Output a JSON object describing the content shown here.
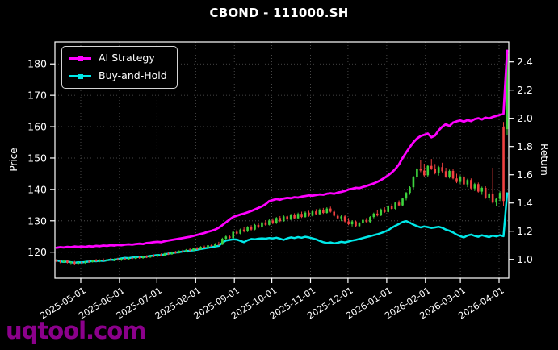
{
  "title": "CBOND - 111000.SH",
  "watermark": "uqtool.com",
  "legend": {
    "items": [
      {
        "label": "AI Strategy",
        "color": "#ff00ff"
      },
      {
        "label": "Buy-and-Hold",
        "color": "#00e8e8"
      }
    ]
  },
  "axes": {
    "left": {
      "label": "Price",
      "ticks": [
        120,
        130,
        140,
        150,
        160,
        170,
        180
      ],
      "range": [
        111.7,
        187.0
      ]
    },
    "right": {
      "label": "Return",
      "ticks": [
        1.0,
        1.2,
        1.4,
        1.6,
        1.8,
        2.0,
        2.2,
        2.4
      ],
      "range": [
        0.867,
        2.541
      ]
    },
    "x": {
      "tick_labels": [
        "2025-05-01",
        "2025-06-01",
        "2025-07-01",
        "2025-08-01",
        "2025-09-01",
        "2025-10-01",
        "2025-11-01",
        "2025-12-01",
        "2026-01-01",
        "2026-02-01",
        "2026-03-01",
        "2026-04-01"
      ],
      "tick_positions": [
        6.72,
        17.45,
        27.85,
        38.6,
        49.33,
        59.72,
        70.45,
        80.85,
        91.6,
        102.33,
        112.03,
        122.76
      ],
      "n_points": 126
    }
  },
  "colors": {
    "background": "#000000",
    "grid": "#5a5a5a",
    "axis": "#ffffff",
    "candle_up": "#3dd33d",
    "candle_down": "#f04040",
    "watermark": "#8b008b"
  },
  "chart_data": {
    "type": "line",
    "subtype": "dual-axis line + candlestick",
    "title": "CBOND - 111000.SH",
    "xlabel": "",
    "ylabel_left": "Price",
    "ylabel_right": "Return",
    "ylim_price": [
      111.7,
      187.0
    ],
    "ylim_return": [
      0.867,
      2.541
    ],
    "grid": "dotted both axes",
    "legend_position": "upper left",
    "series": [
      {
        "name": "AI Strategy",
        "type": "line",
        "axis": "price",
        "color": "#ff00ff",
        "width": 2.8,
        "values": [
          121.4,
          121.6,
          121.5,
          121.7,
          121.6,
          121.8,
          121.7,
          121.8,
          121.7,
          121.9,
          121.8,
          122.0,
          121.9,
          122.1,
          122.0,
          122.2,
          122.1,
          122.3,
          122.2,
          122.4,
          122.5,
          122.4,
          122.6,
          122.7,
          122.6,
          122.9,
          123.0,
          123.2,
          123.3,
          123.2,
          123.5,
          123.7,
          123.9,
          124.1,
          124.3,
          124.5,
          124.7,
          124.9,
          125.2,
          125.5,
          125.8,
          126.1,
          126.5,
          126.8,
          127.2,
          127.8,
          128.6,
          129.5,
          130.4,
          131.2,
          131.6,
          132.0,
          132.3,
          132.7,
          133.1,
          133.6,
          134.1,
          134.6,
          135.3,
          136.3,
          136.6,
          136.9,
          136.7,
          137.1,
          137.3,
          137.2,
          137.5,
          137.4,
          137.7,
          137.9,
          138.1,
          138.0,
          138.2,
          138.4,
          138.3,
          138.6,
          138.8,
          138.6,
          139.0,
          139.2,
          139.5,
          140.0,
          140.2,
          140.5,
          140.4,
          140.8,
          141.1,
          141.5,
          141.9,
          142.4,
          143.0,
          143.7,
          144.5,
          145.4,
          146.5,
          148.0,
          150.0,
          151.8,
          153.5,
          155.0,
          156.2,
          157.0,
          157.4,
          157.8,
          156.6,
          157.2,
          158.8,
          160.0,
          160.8,
          160.2,
          161.3,
          161.7,
          162.0,
          161.6,
          162.1,
          161.8,
          162.4,
          162.7,
          162.3,
          162.9,
          162.6,
          163.1,
          163.4,
          163.8,
          164.1,
          184.2
        ]
      },
      {
        "name": "Buy-and-Hold",
        "type": "line",
        "axis": "price",
        "color": "#00e8e8",
        "width": 2.5,
        "values": [
          117.4,
          117.1,
          116.9,
          117.0,
          116.8,
          116.6,
          116.8,
          116.7,
          116.9,
          117.0,
          117.2,
          117.1,
          117.3,
          117.2,
          117.4,
          117.6,
          117.5,
          117.8,
          118.0,
          118.2,
          118.1,
          118.3,
          118.4,
          118.5,
          118.4,
          118.6,
          118.8,
          118.9,
          119.1,
          119.0,
          119.3,
          119.5,
          119.7,
          119.9,
          120.0,
          120.2,
          120.3,
          120.5,
          120.6,
          120.8,
          121.0,
          121.2,
          121.4,
          121.6,
          121.8,
          122.0,
          123.0,
          123.7,
          123.9,
          124.1,
          124.0,
          123.6,
          123.2,
          123.8,
          124.2,
          124.1,
          124.3,
          124.4,
          124.3,
          124.5,
          124.4,
          124.6,
          124.3,
          123.9,
          124.4,
          124.7,
          124.5,
          124.8,
          124.6,
          124.9,
          124.7,
          124.4,
          124.1,
          123.6,
          123.2,
          122.9,
          123.1,
          122.8,
          123.0,
          123.3,
          123.1,
          123.4,
          123.7,
          123.9,
          124.2,
          124.5,
          124.8,
          125.1,
          125.4,
          125.7,
          126.1,
          126.5,
          127.0,
          127.8,
          128.4,
          129.0,
          129.6,
          129.9,
          129.4,
          128.8,
          128.3,
          127.9,
          128.2,
          128.0,
          127.7,
          127.9,
          128.1,
          127.8,
          127.2,
          126.8,
          126.3,
          125.6,
          125.1,
          124.7,
          125.3,
          125.6,
          125.2,
          124.9,
          125.4,
          125.1,
          124.8,
          125.3,
          125.0,
          125.4,
          125.1,
          138.8
        ]
      },
      {
        "name": "Daily OHLC",
        "type": "candlestick",
        "axis": "price",
        "up_color": "#3dd33d",
        "down_color": "#f04040",
        "values": [
          [
            117.3,
            117.8,
            116.8,
            117.0
          ],
          [
            117.0,
            117.4,
            116.5,
            116.8
          ],
          [
            116.8,
            117.5,
            116.6,
            117.3
          ],
          [
            117.3,
            117.6,
            116.4,
            116.6
          ],
          [
            116.6,
            117.1,
            116.2,
            116.9
          ],
          [
            116.9,
            117.2,
            116.0,
            116.3
          ],
          [
            116.3,
            117.0,
            116.1,
            116.8
          ],
          [
            116.8,
            117.1,
            116.2,
            116.5
          ],
          [
            116.5,
            117.2,
            116.3,
            117.0
          ],
          [
            117.0,
            117.4,
            116.6,
            116.8
          ],
          [
            116.8,
            117.6,
            116.7,
            117.4
          ],
          [
            117.4,
            117.8,
            116.9,
            117.1
          ],
          [
            117.1,
            117.7,
            116.8,
            117.5
          ],
          [
            117.5,
            118.0,
            117.0,
            117.2
          ],
          [
            117.2,
            117.9,
            117.0,
            117.7
          ],
          [
            117.7,
            118.1,
            117.2,
            117.4
          ],
          [
            117.4,
            118.0,
            117.1,
            117.8
          ],
          [
            117.8,
            118.2,
            117.3,
            117.5
          ],
          [
            117.5,
            118.1,
            117.2,
            117.9
          ],
          [
            117.9,
            118.3,
            117.4,
            117.7
          ],
          [
            117.7,
            118.4,
            117.5,
            118.2
          ],
          [
            118.2,
            118.6,
            117.7,
            117.9
          ],
          [
            117.9,
            118.6,
            117.7,
            118.4
          ],
          [
            118.4,
            118.8,
            117.9,
            118.1
          ],
          [
            118.1,
            118.8,
            117.9,
            118.6
          ],
          [
            118.6,
            119.0,
            118.1,
            118.3
          ],
          [
            118.3,
            119.1,
            118.2,
            118.9
          ],
          [
            118.9,
            119.3,
            118.4,
            118.6
          ],
          [
            118.6,
            119.4,
            118.5,
            119.2
          ],
          [
            119.2,
            119.6,
            118.7,
            118.9
          ],
          [
            118.9,
            119.8,
            118.8,
            119.6
          ],
          [
            119.6,
            120.0,
            119.1,
            119.3
          ],
          [
            119.3,
            120.2,
            119.2,
            120.0
          ],
          [
            120.0,
            120.4,
            119.5,
            119.7
          ],
          [
            119.7,
            120.6,
            119.6,
            120.4
          ],
          [
            120.4,
            120.8,
            119.9,
            120.1
          ],
          [
            120.1,
            121.0,
            120.0,
            120.8
          ],
          [
            120.8,
            121.2,
            120.3,
            120.5
          ],
          [
            120.5,
            121.4,
            120.4,
            121.2
          ],
          [
            121.2,
            121.6,
            120.7,
            120.9
          ],
          [
            120.9,
            121.9,
            120.8,
            121.7
          ],
          [
            121.7,
            122.1,
            121.2,
            121.4
          ],
          [
            121.4,
            122.4,
            121.3,
            122.2
          ],
          [
            122.2,
            122.6,
            121.7,
            121.9
          ],
          [
            121.9,
            122.9,
            121.8,
            122.7
          ],
          [
            122.7,
            123.3,
            122.1,
            122.4
          ],
          [
            122.4,
            124.6,
            122.3,
            124.3
          ],
          [
            124.3,
            125.3,
            123.9,
            125.0
          ],
          [
            125.0,
            125.5,
            124.2,
            124.5
          ],
          [
            124.5,
            126.8,
            124.4,
            126.5
          ],
          [
            126.5,
            127.2,
            125.6,
            125.9
          ],
          [
            125.9,
            127.5,
            125.7,
            127.2
          ],
          [
            127.2,
            127.9,
            126.3,
            126.6
          ],
          [
            126.6,
            128.3,
            126.4,
            128.0
          ],
          [
            128.0,
            128.6,
            126.9,
            127.2
          ],
          [
            127.2,
            129.0,
            127.0,
            128.7
          ],
          [
            128.7,
            129.4,
            127.6,
            127.9
          ],
          [
            127.9,
            129.8,
            127.7,
            129.5
          ],
          [
            129.5,
            130.2,
            128.4,
            128.7
          ],
          [
            128.7,
            130.5,
            128.5,
            130.1
          ],
          [
            130.1,
            130.8,
            128.9,
            129.2
          ],
          [
            129.2,
            131.2,
            129.0,
            130.9
          ],
          [
            130.9,
            131.5,
            129.6,
            129.9
          ],
          [
            129.9,
            131.8,
            129.7,
            131.4
          ],
          [
            131.4,
            132.0,
            130.1,
            130.4
          ],
          [
            130.4,
            132.2,
            130.2,
            131.8
          ],
          [
            131.8,
            132.4,
            130.5,
            130.8
          ],
          [
            130.8,
            132.6,
            130.6,
            132.2
          ],
          [
            132.2,
            132.9,
            130.9,
            131.2
          ],
          [
            131.2,
            133.0,
            131.0,
            132.6
          ],
          [
            132.6,
            133.2,
            131.3,
            131.6
          ],
          [
            131.6,
            133.4,
            131.4,
            133.0
          ],
          [
            133.0,
            133.7,
            131.8,
            132.1
          ],
          [
            132.1,
            133.9,
            131.9,
            133.5
          ],
          [
            133.5,
            134.1,
            132.2,
            132.5
          ],
          [
            132.5,
            134.3,
            132.3,
            133.9
          ],
          [
            133.9,
            134.5,
            132.6,
            132.9
          ],
          [
            132.9,
            133.3,
            131.3,
            131.6
          ],
          [
            131.6,
            132.2,
            130.5,
            130.8
          ],
          [
            130.8,
            131.8,
            129.9,
            131.4
          ],
          [
            131.4,
            131.8,
            129.5,
            129.8
          ],
          [
            129.8,
            130.9,
            128.6,
            128.9
          ],
          [
            128.9,
            130.2,
            128.2,
            129.8
          ],
          [
            129.8,
            130.1,
            127.9,
            128.3
          ],
          [
            128.3,
            129.6,
            128.0,
            129.3
          ],
          [
            129.3,
            130.6,
            129.0,
            130.3
          ],
          [
            130.3,
            130.9,
            129.3,
            129.6
          ],
          [
            129.6,
            131.5,
            129.4,
            131.2
          ],
          [
            131.2,
            132.6,
            130.8,
            132.3
          ],
          [
            132.3,
            133.4,
            131.4,
            131.7
          ],
          [
            131.7,
            133.9,
            131.5,
            133.6
          ],
          [
            133.6,
            134.3,
            132.5,
            132.8
          ],
          [
            132.8,
            135.0,
            132.6,
            134.7
          ],
          [
            134.7,
            135.4,
            133.5,
            133.8
          ],
          [
            133.8,
            136.1,
            133.6,
            135.8
          ],
          [
            135.8,
            136.5,
            134.6,
            134.9
          ],
          [
            134.9,
            137.4,
            134.7,
            137.1
          ],
          [
            137.1,
            139.2,
            136.5,
            138.9
          ],
          [
            138.9,
            141.0,
            138.3,
            140.7
          ],
          [
            140.7,
            144.3,
            140.2,
            143.9
          ],
          [
            143.9,
            146.9,
            143.3,
            146.5
          ],
          [
            146.5,
            149.4,
            145.5,
            146.0
          ],
          [
            146.0,
            148.2,
            144.1,
            144.5
          ],
          [
            144.5,
            147.9,
            143.9,
            147.5
          ],
          [
            147.5,
            149.7,
            146.2,
            146.6
          ],
          [
            146.6,
            148.1,
            144.8,
            145.2
          ],
          [
            145.2,
            147.5,
            144.4,
            147.1
          ],
          [
            147.1,
            148.5,
            145.4,
            145.8
          ],
          [
            145.8,
            146.9,
            143.7,
            144.0
          ],
          [
            144.0,
            146.3,
            143.5,
            145.9
          ],
          [
            145.9,
            146.5,
            143.2,
            143.5
          ],
          [
            143.5,
            145.0,
            142.0,
            142.4
          ],
          [
            142.4,
            144.5,
            141.8,
            144.1
          ],
          [
            144.1,
            144.7,
            141.3,
            141.6
          ],
          [
            141.6,
            143.4,
            140.7,
            143.0
          ],
          [
            143.0,
            143.5,
            140.0,
            140.3
          ],
          [
            140.3,
            142.1,
            139.5,
            141.7
          ],
          [
            141.7,
            142.2,
            139.0,
            139.3
          ],
          [
            139.3,
            140.9,
            138.3,
            140.5
          ],
          [
            140.5,
            141.0,
            137.0,
            137.3
          ],
          [
            137.3,
            139.1,
            136.5,
            138.7
          ],
          [
            138.7,
            146.9,
            135.5,
            135.8
          ],
          [
            135.8,
            137.3,
            134.7,
            137.0
          ],
          [
            137.0,
            139.4,
            136.3,
            138.9
          ],
          [
            159.8,
            161.5,
            134.8,
            136.3
          ],
          [
            159.2,
            184.3,
            157.2,
            183.2
          ]
        ]
      }
    ]
  }
}
